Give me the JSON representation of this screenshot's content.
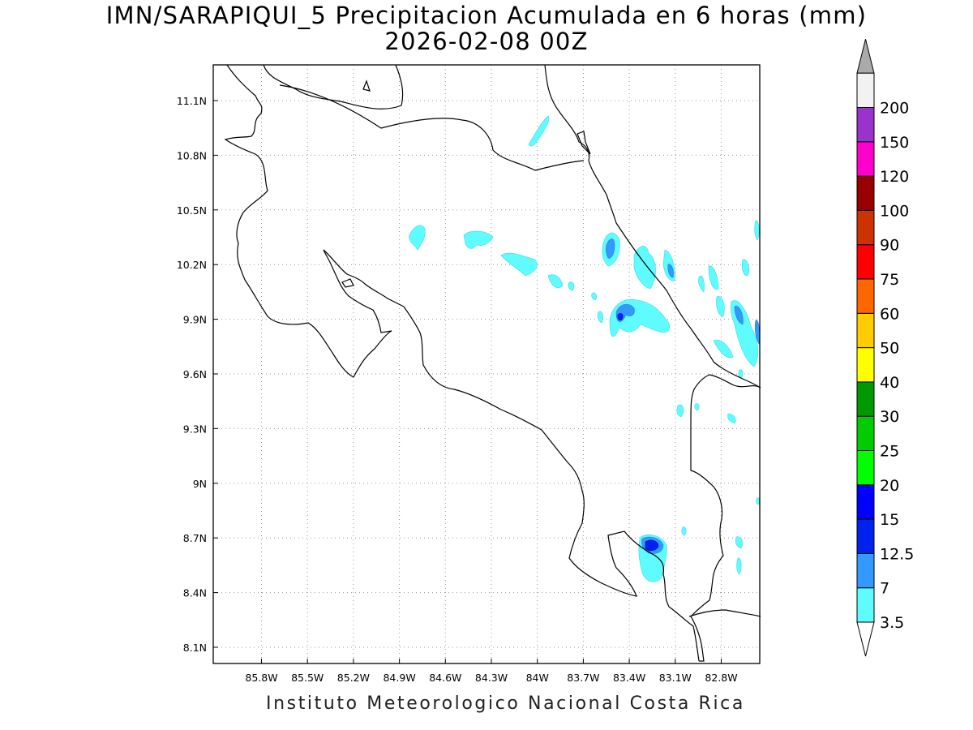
{
  "title": {
    "line1": "IMN/SARAPIQUI_5 Precipitacion Acumulada en 6 horas (mm)",
    "line2": "2026-02-08 00Z"
  },
  "footer": "Instituto Meteorologico Nacional Costa Rica",
  "map": {
    "lon_range": [
      -85.95,
      -82.75
    ],
    "lat_range": [
      8.0,
      11.25
    ],
    "lon_ticks": [
      "85.8W",
      "85.5W",
      "85.2W",
      "84.9W",
      "84.6W",
      "84.3W",
      "84W",
      "83.7W",
      "83.4W",
      "83.1W",
      "82.8W"
    ],
    "lat_ticks": [
      "11.1N",
      "10.8N",
      "10.5N",
      "10.2N",
      "9.9N",
      "9.6N",
      "9.3N",
      "9N",
      "8.7N",
      "8.4N",
      "8.1N"
    ],
    "grid": "dotted"
  },
  "colorbar": {
    "labels": [
      "3.5",
      "7",
      "12.5",
      "15",
      "20",
      "25",
      "30",
      "40",
      "50",
      "60",
      "75",
      "90",
      "100",
      "120",
      "150",
      "200"
    ],
    "colors": [
      "#5ffcff",
      "#3399ff",
      "#0022ee",
      "#0000ff",
      "#00ff00",
      "#00cc00",
      "#009900",
      "#ffff00",
      "#ffcc00",
      "#ff6600",
      "#ff0000",
      "#cc3300",
      "#990000",
      "#ff00cc",
      "#9933cc",
      "#f2f2f2"
    ],
    "over_color": "#aaaaaa",
    "under_color": "#ffffff"
  },
  "colors": {
    "light_cyan": "#5ffcff",
    "medium_blue": "#3399ff",
    "dark_blue": "#0022ee",
    "coast": "#000000"
  }
}
